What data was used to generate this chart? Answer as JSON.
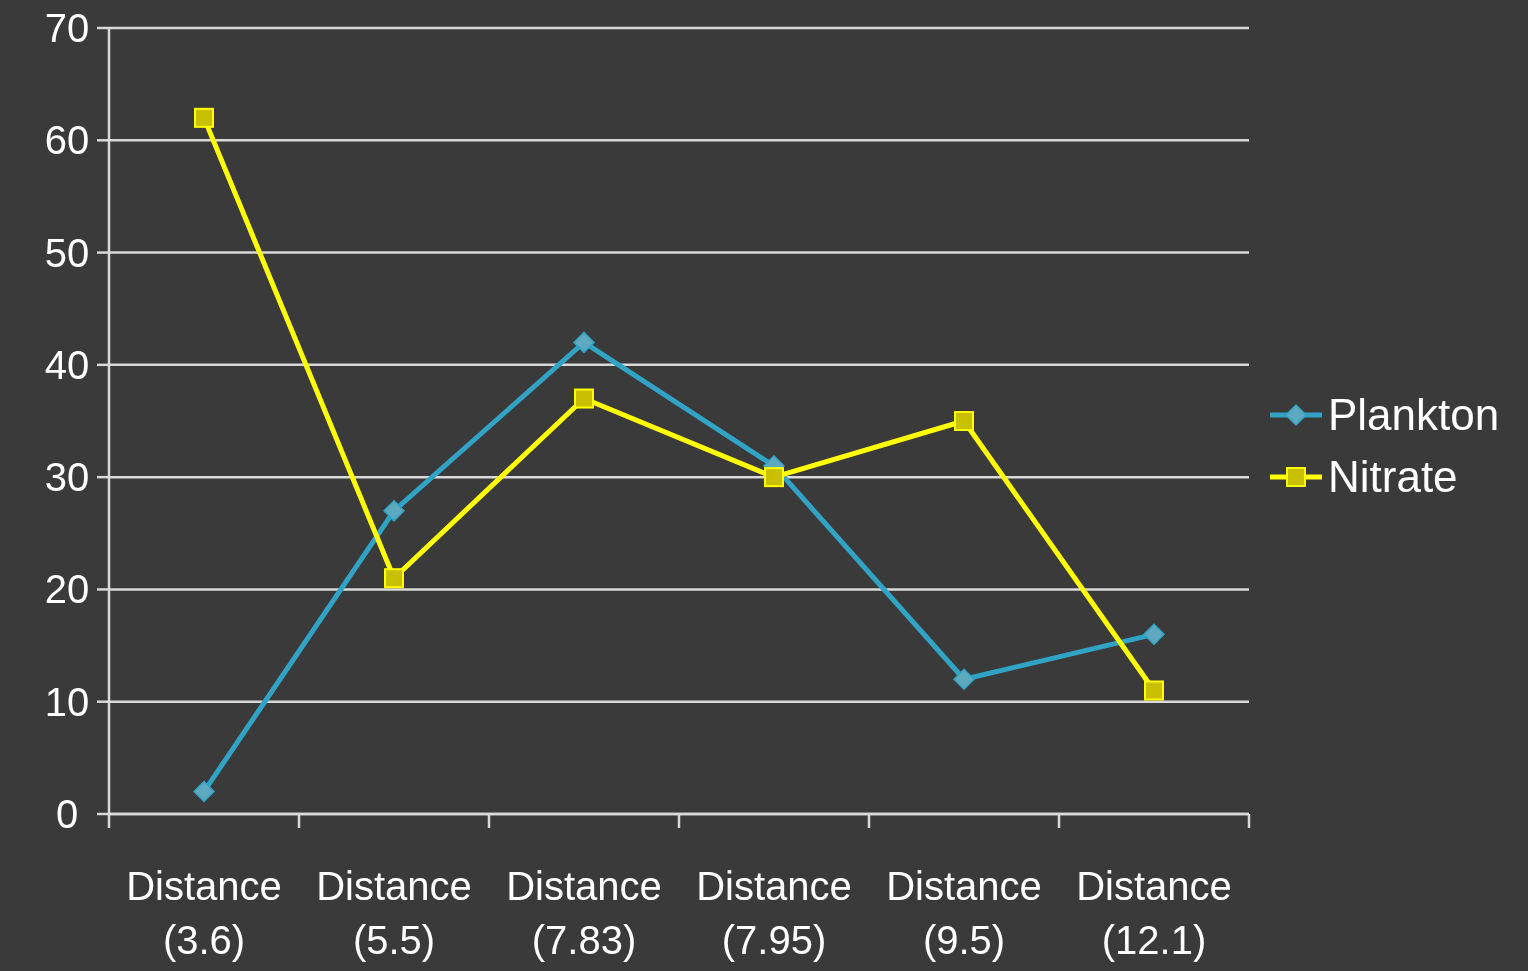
{
  "chart_data": {
    "type": "line",
    "categories": [
      "Distance (3.6)",
      "Distance (5.5)",
      "Distance (7.83)",
      "Distance (7.95)",
      "Distance (9.5)",
      "Distance (12.1)"
    ],
    "series": [
      {
        "name": "Plankton",
        "color": "#31a3c4",
        "marker": "diamond",
        "values": [
          2,
          27,
          42,
          31,
          12,
          16
        ]
      },
      {
        "name": "Nitrate",
        "color": "#ffff00",
        "marker": "square",
        "values": [
          62,
          21,
          37,
          30,
          35,
          11
        ]
      }
    ],
    "ylim": [
      0,
      70
    ],
    "yticks": [
      0,
      10,
      20,
      30,
      40,
      50,
      60,
      70
    ],
    "grid": "y",
    "legend": "right"
  }
}
